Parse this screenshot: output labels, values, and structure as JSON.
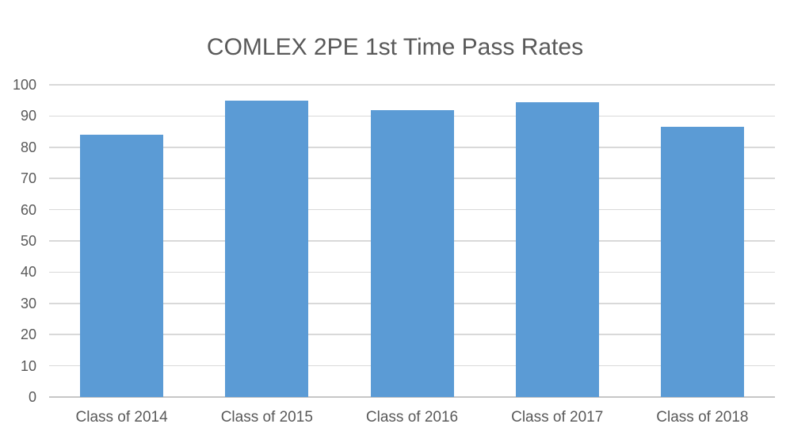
{
  "chart_data": {
    "type": "bar",
    "title": "COMLEX 2PE 1st Time Pass Rates",
    "categories": [
      "Class of 2014",
      "Class of 2015",
      "Class of 2016",
      "Class of 2017",
      "Class of 2018"
    ],
    "values": [
      84,
      95,
      92,
      94.5,
      86.5
    ],
    "xlabel": "",
    "ylabel": "",
    "ylim": [
      0,
      100
    ],
    "ytick_step": 10,
    "ytick_labels": [
      "0",
      "10",
      "20",
      "30",
      "40",
      "50",
      "60",
      "70",
      "80",
      "90",
      "100"
    ],
    "grid": true,
    "legend": "none",
    "colors": {
      "bar": "#5b9bd5",
      "text": "#595959",
      "gridline": "#d9d9d9",
      "axis_line": "#c6c6c6",
      "background": "#ffffff"
    }
  }
}
